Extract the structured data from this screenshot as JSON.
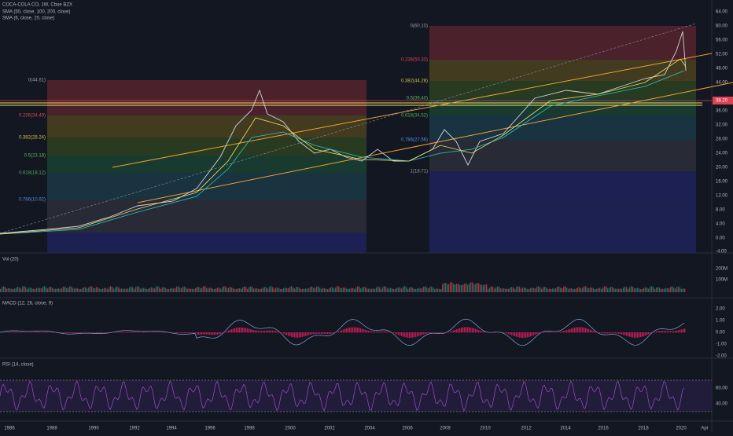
{
  "header": {
    "symbol": "COCA-COLA CO, 1W, Cboe BZX",
    "sma_1": "SMA (50, close, 100, 200, close)",
    "sma_2": "SMA (6, close, 20, close)"
  },
  "price_axis": {
    "ticks": [
      "64.00",
      "60.00",
      "56.00",
      "52.00",
      "48.00",
      "44.00",
      "36.00",
      "32.00",
      "28.00",
      "24.00",
      "20.00",
      "16.00",
      "12.00",
      "8.00",
      "4.00",
      "0.00",
      "-4.00"
    ],
    "current_price": "38.20"
  },
  "fib_left": [
    "0(44.61)",
    "0.236(34.49)",
    "0.382(28.24)",
    "0.5(23.18)",
    "0.618(18.12)",
    "0.786(10.92)"
  ],
  "fib_right": [
    "0(60.10)",
    "0.236(50.33)",
    "0.382(44.28)",
    "0.5(39.40)",
    "0.618(34.52)",
    "0.786(27.56)",
    "1(18.71)"
  ],
  "volume_pane": {
    "label": "Vol (20)",
    "ticks": [
      "200M",
      "100M"
    ]
  },
  "macd_pane": {
    "label": "MACD (12, 26, close, 9)",
    "ticks": [
      "2.00",
      "1.00",
      "0.00",
      "-1.00",
      "-2.00"
    ]
  },
  "rsi_pane": {
    "label": "RSI (14, close)",
    "ticks": [
      "60.00",
      "40.00"
    ]
  },
  "time_axis": [
    "1986",
    "1988",
    "1990",
    "1992",
    "1994",
    "1996",
    "1998",
    "2000",
    "2002",
    "2004",
    "2006",
    "2008",
    "2010",
    "2012",
    "2014",
    "2016",
    "2018",
    "2020",
    "Apr"
  ]
}
